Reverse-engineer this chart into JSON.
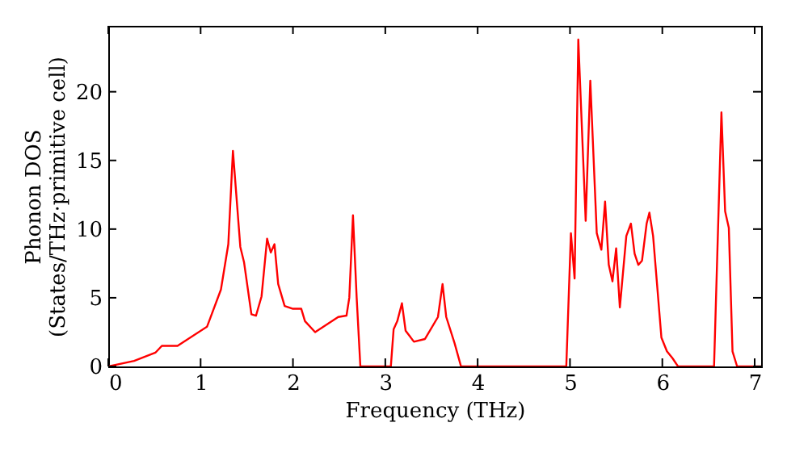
{
  "chart_data": {
    "type": "line",
    "xlabel": "Frequency (THz)",
    "ylabel": "Phonon DOS\n(States/THz·primitive cell)",
    "x": [
      0,
      0.28,
      0.51,
      0.58,
      0.75,
      1.07,
      1.12,
      1.22,
      1.3,
      1.35,
      1.43,
      1.47,
      1.55,
      1.6,
      1.66,
      1.72,
      1.76,
      1.8,
      1.84,
      1.91,
      2.0,
      2.09,
      2.13,
      2.24,
      2.49,
      2.58,
      2.61,
      2.65,
      2.69,
      2.73,
      3.06,
      3.09,
      3.13,
      3.18,
      3.22,
      3.31,
      3.43,
      3.57,
      3.62,
      3.66,
      3.75,
      3.82,
      4.96,
      5.01,
      5.05,
      5.09,
      5.17,
      5.22,
      5.29,
      5.34,
      5.38,
      5.42,
      5.46,
      5.5,
      5.54,
      5.61,
      5.66,
      5.7,
      5.74,
      5.78,
      5.83,
      5.86,
      5.9,
      5.99,
      6.05,
      6.11,
      6.17,
      6.56,
      6.64,
      6.68,
      6.72,
      6.76,
      6.81,
      7.07
    ],
    "series": [
      {
        "color": "#ff0000",
        "values": [
          0,
          0.4,
          1.0,
          1.5,
          1.5,
          2.9,
          3.8,
          5.6,
          8.9,
          15.7,
          8.7,
          7.6,
          3.8,
          3.7,
          5.1,
          9.3,
          8.3,
          8.9,
          6.0,
          4.4,
          4.2,
          4.2,
          3.3,
          2.5,
          3.6,
          3.7,
          5.0,
          11.0,
          5.0,
          0,
          0,
          2.7,
          3.3,
          4.6,
          2.6,
          1.8,
          2.0,
          3.6,
          6.0,
          3.6,
          1.7,
          0,
          0,
          9.7,
          6.4,
          23.8,
          10.6,
          20.8,
          9.7,
          8.5,
          12.0,
          7.4,
          6.2,
          8.6,
          4.3,
          9.5,
          10.4,
          8.2,
          7.4,
          7.7,
          10.4,
          11.2,
          9.5,
          2.1,
          1.1,
          0.6,
          0,
          0,
          18.5,
          11.3,
          10.1,
          1.1,
          0,
          0
        ]
      }
    ],
    "xlim": [
      0,
      7.07
    ],
    "ylim": [
      0,
      24.8
    ],
    "xticks": [
      0,
      1,
      2,
      3,
      4,
      5,
      6,
      7
    ],
    "yticks": [
      0,
      5,
      10,
      15,
      20
    ],
    "grid": false,
    "legend": false,
    "line_style": "solid",
    "marker": "none"
  }
}
